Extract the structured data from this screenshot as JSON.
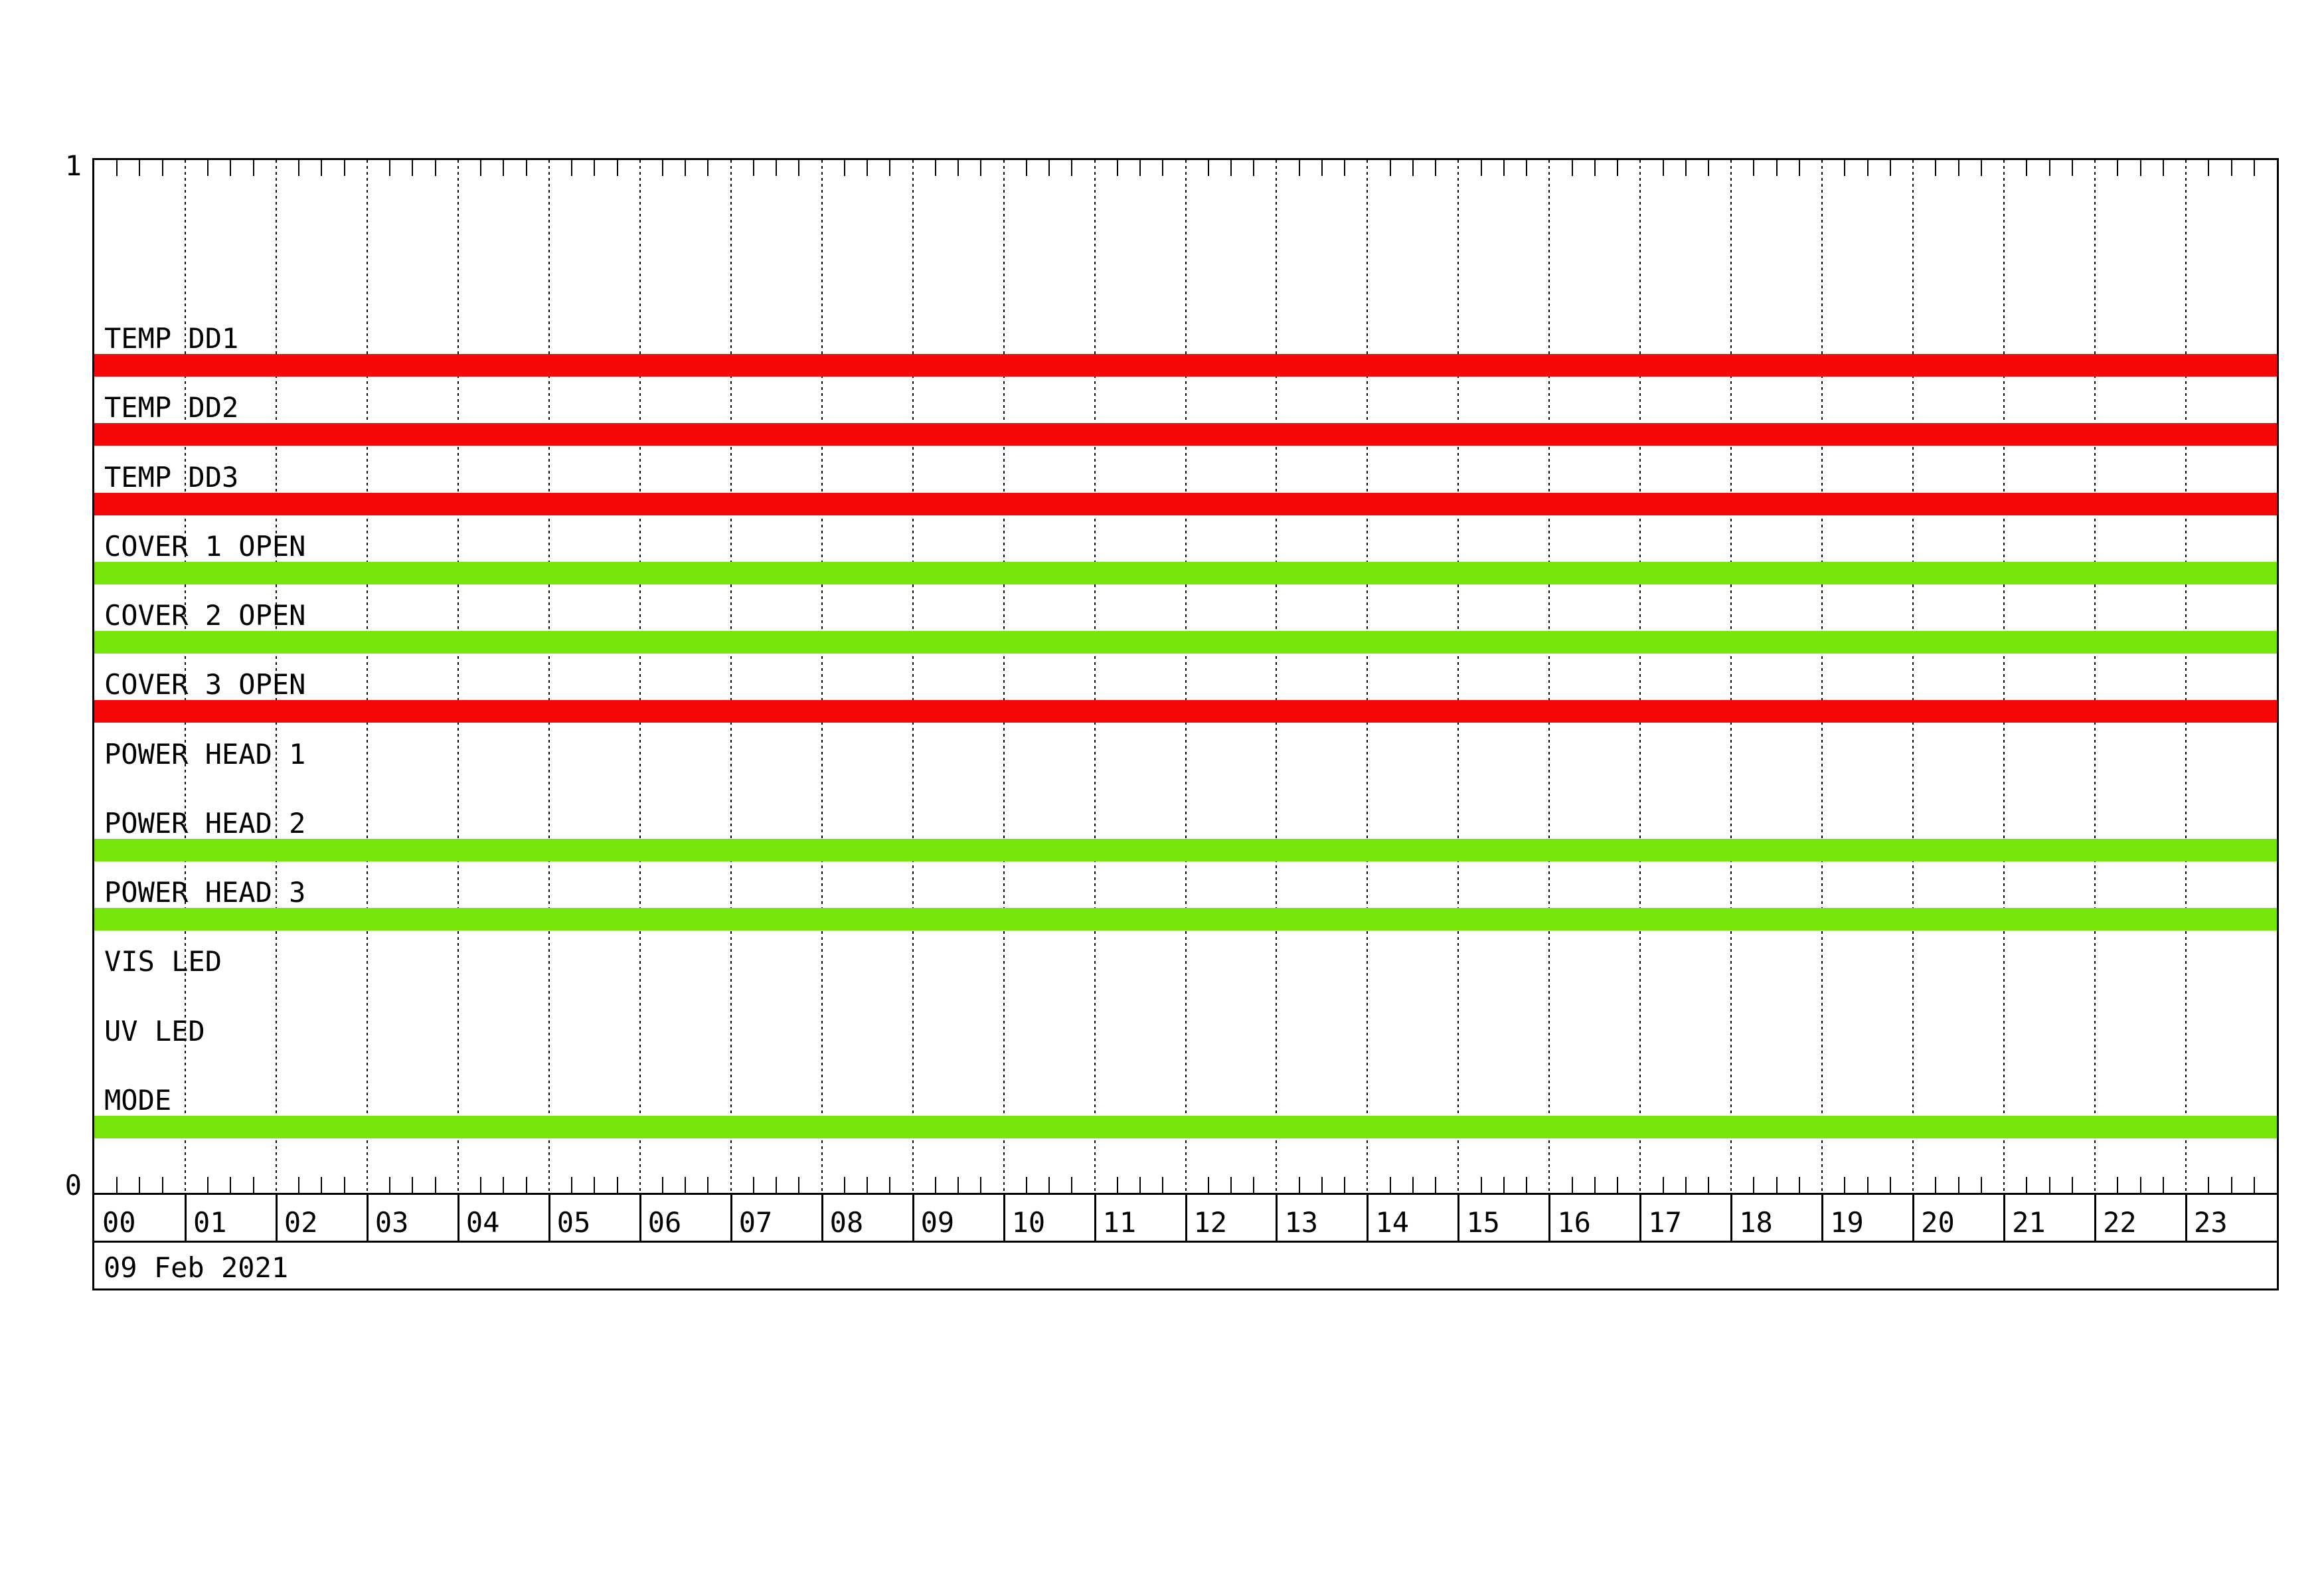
{
  "palette": {
    "red": "#f70808",
    "green": "#76e70a",
    "frame": "#000000",
    "background": "#ffffff"
  },
  "chart_data": {
    "type": "timeline",
    "title": "",
    "date": "09 Feb 2021",
    "x": {
      "unit": "hour",
      "range": [
        0,
        24
      ],
      "tick_labels": [
        "00",
        "01",
        "02",
        "03",
        "04",
        "05",
        "06",
        "07",
        "08",
        "09",
        "10",
        "11",
        "12",
        "13",
        "14",
        "15",
        "16",
        "17",
        "18",
        "19",
        "20",
        "21",
        "22",
        "23"
      ],
      "minor_tick_minutes": 15,
      "grid": "dotted vertical line at every hour"
    },
    "y_axis_labels": [
      "0",
      "1"
    ],
    "legend": "none",
    "rows": [
      {
        "label": "TEMP DD1",
        "segments": [
          {
            "start": 0,
            "end": 24,
            "color": "red"
          }
        ]
      },
      {
        "label": "TEMP DD2",
        "segments": [
          {
            "start": 0,
            "end": 24,
            "color": "red"
          }
        ]
      },
      {
        "label": "TEMP DD3",
        "segments": [
          {
            "start": 0,
            "end": 24,
            "color": "red"
          }
        ]
      },
      {
        "label": "COVER 1 OPEN",
        "segments": [
          {
            "start": 0,
            "end": 24,
            "color": "green"
          }
        ]
      },
      {
        "label": "COVER 2 OPEN",
        "segments": [
          {
            "start": 0,
            "end": 24,
            "color": "green"
          }
        ]
      },
      {
        "label": "COVER 3 OPEN",
        "segments": [
          {
            "start": 0,
            "end": 24,
            "color": "red"
          }
        ]
      },
      {
        "label": "POWER HEAD 1",
        "segments": []
      },
      {
        "label": "POWER HEAD 2",
        "segments": [
          {
            "start": 0,
            "end": 24,
            "color": "green"
          }
        ]
      },
      {
        "label": "POWER HEAD 3",
        "segments": [
          {
            "start": 0,
            "end": 24,
            "color": "green"
          }
        ]
      },
      {
        "label": "VIS LED",
        "segments": []
      },
      {
        "label": "UV LED",
        "segments": []
      },
      {
        "label": "MODE",
        "segments": [
          {
            "start": 0,
            "end": 24,
            "color": "green"
          }
        ]
      }
    ]
  }
}
